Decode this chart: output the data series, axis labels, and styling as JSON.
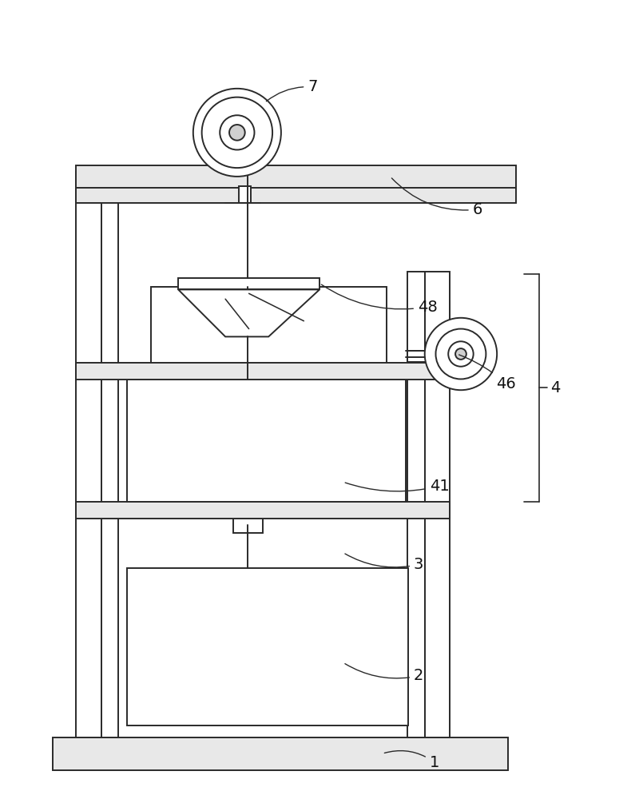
{
  "bg_color": "#ffffff",
  "line_color": "#2a2a2a",
  "lw": 1.4,
  "figsize": [
    8.05,
    10.0
  ],
  "dpi": 100
}
